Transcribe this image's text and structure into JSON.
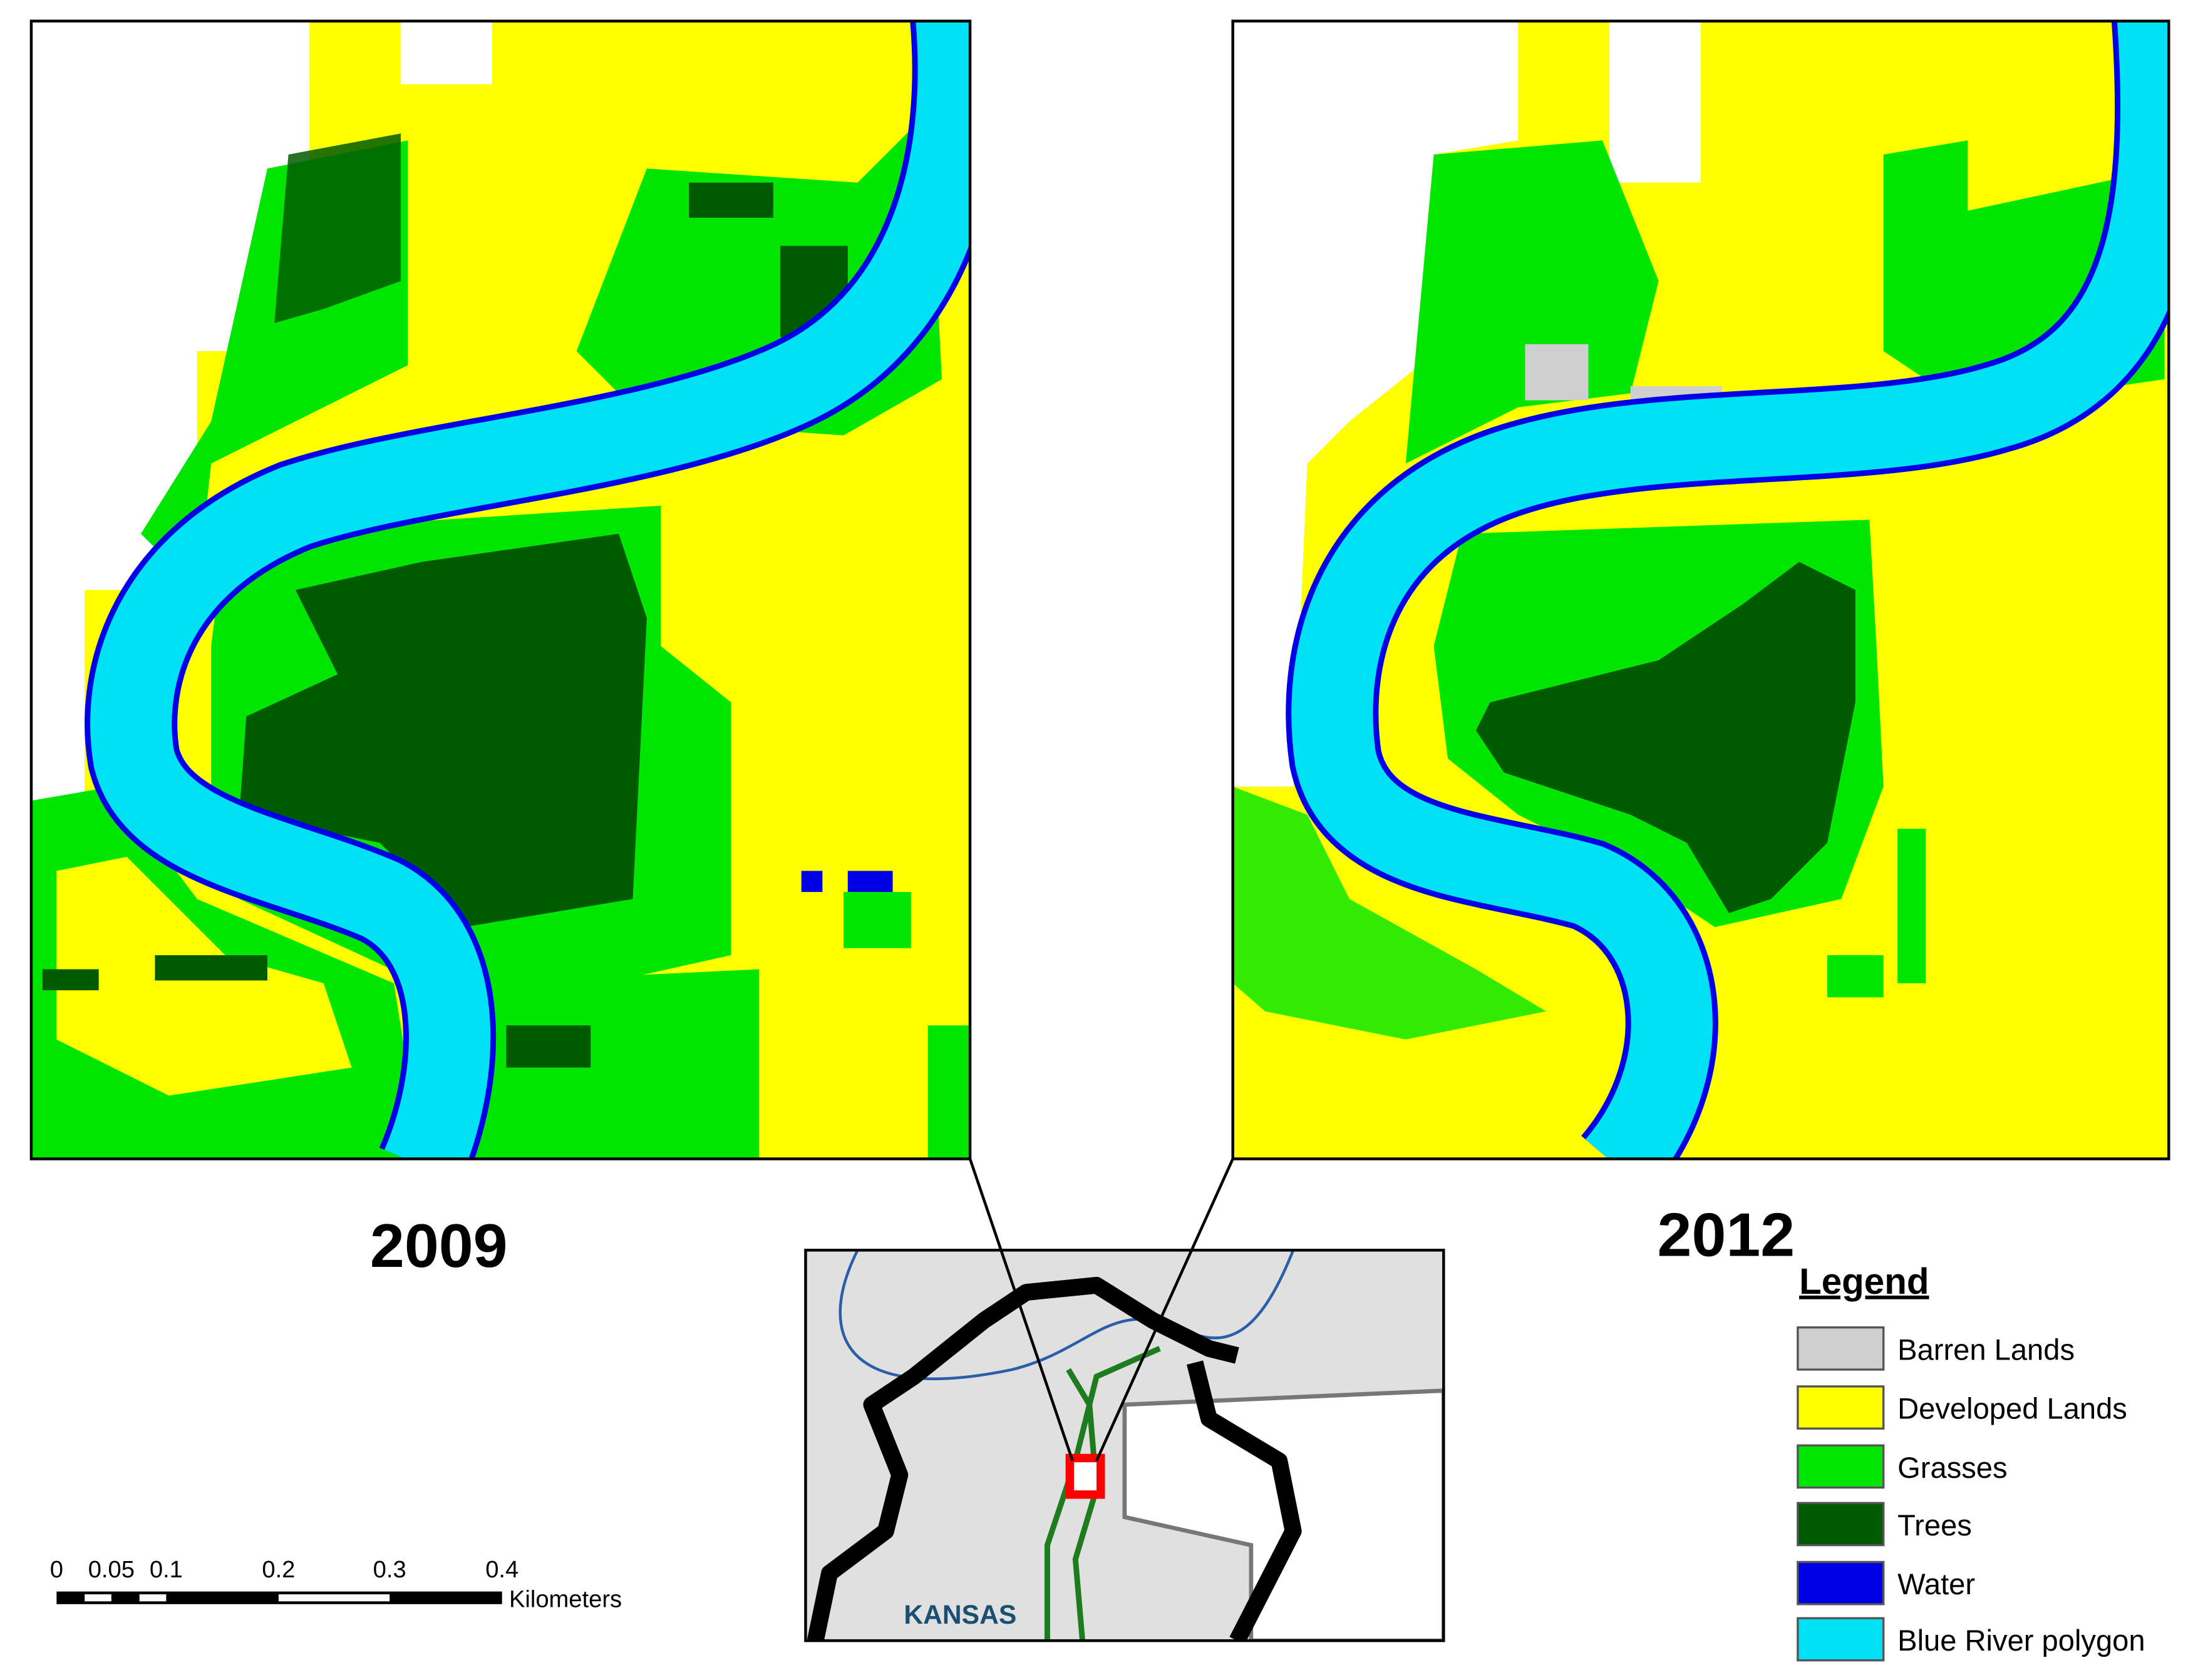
{
  "panels": [
    {
      "label": "2009"
    },
    {
      "label": "2012"
    }
  ],
  "legend": {
    "title": "Legend",
    "items": [
      {
        "label": "Barren Lands",
        "color": "#cfcfcf"
      },
      {
        "label": "Developed Lands",
        "color": "#ffff00"
      },
      {
        "label": "Grasses",
        "color": "#00e600"
      },
      {
        "label": "Trees",
        "color": "#005a00"
      },
      {
        "label": "Water",
        "color": "#0000e6"
      },
      {
        "label": "Blue River polygon",
        "color": "#00e1f5"
      }
    ]
  },
  "scale_bar": {
    "labels": [
      "0",
      "0.05",
      "0.1",
      "0.2",
      "0.3",
      "0.4"
    ],
    "unit": "Kilometers"
  },
  "inset": {
    "label": "KANSAS"
  }
}
